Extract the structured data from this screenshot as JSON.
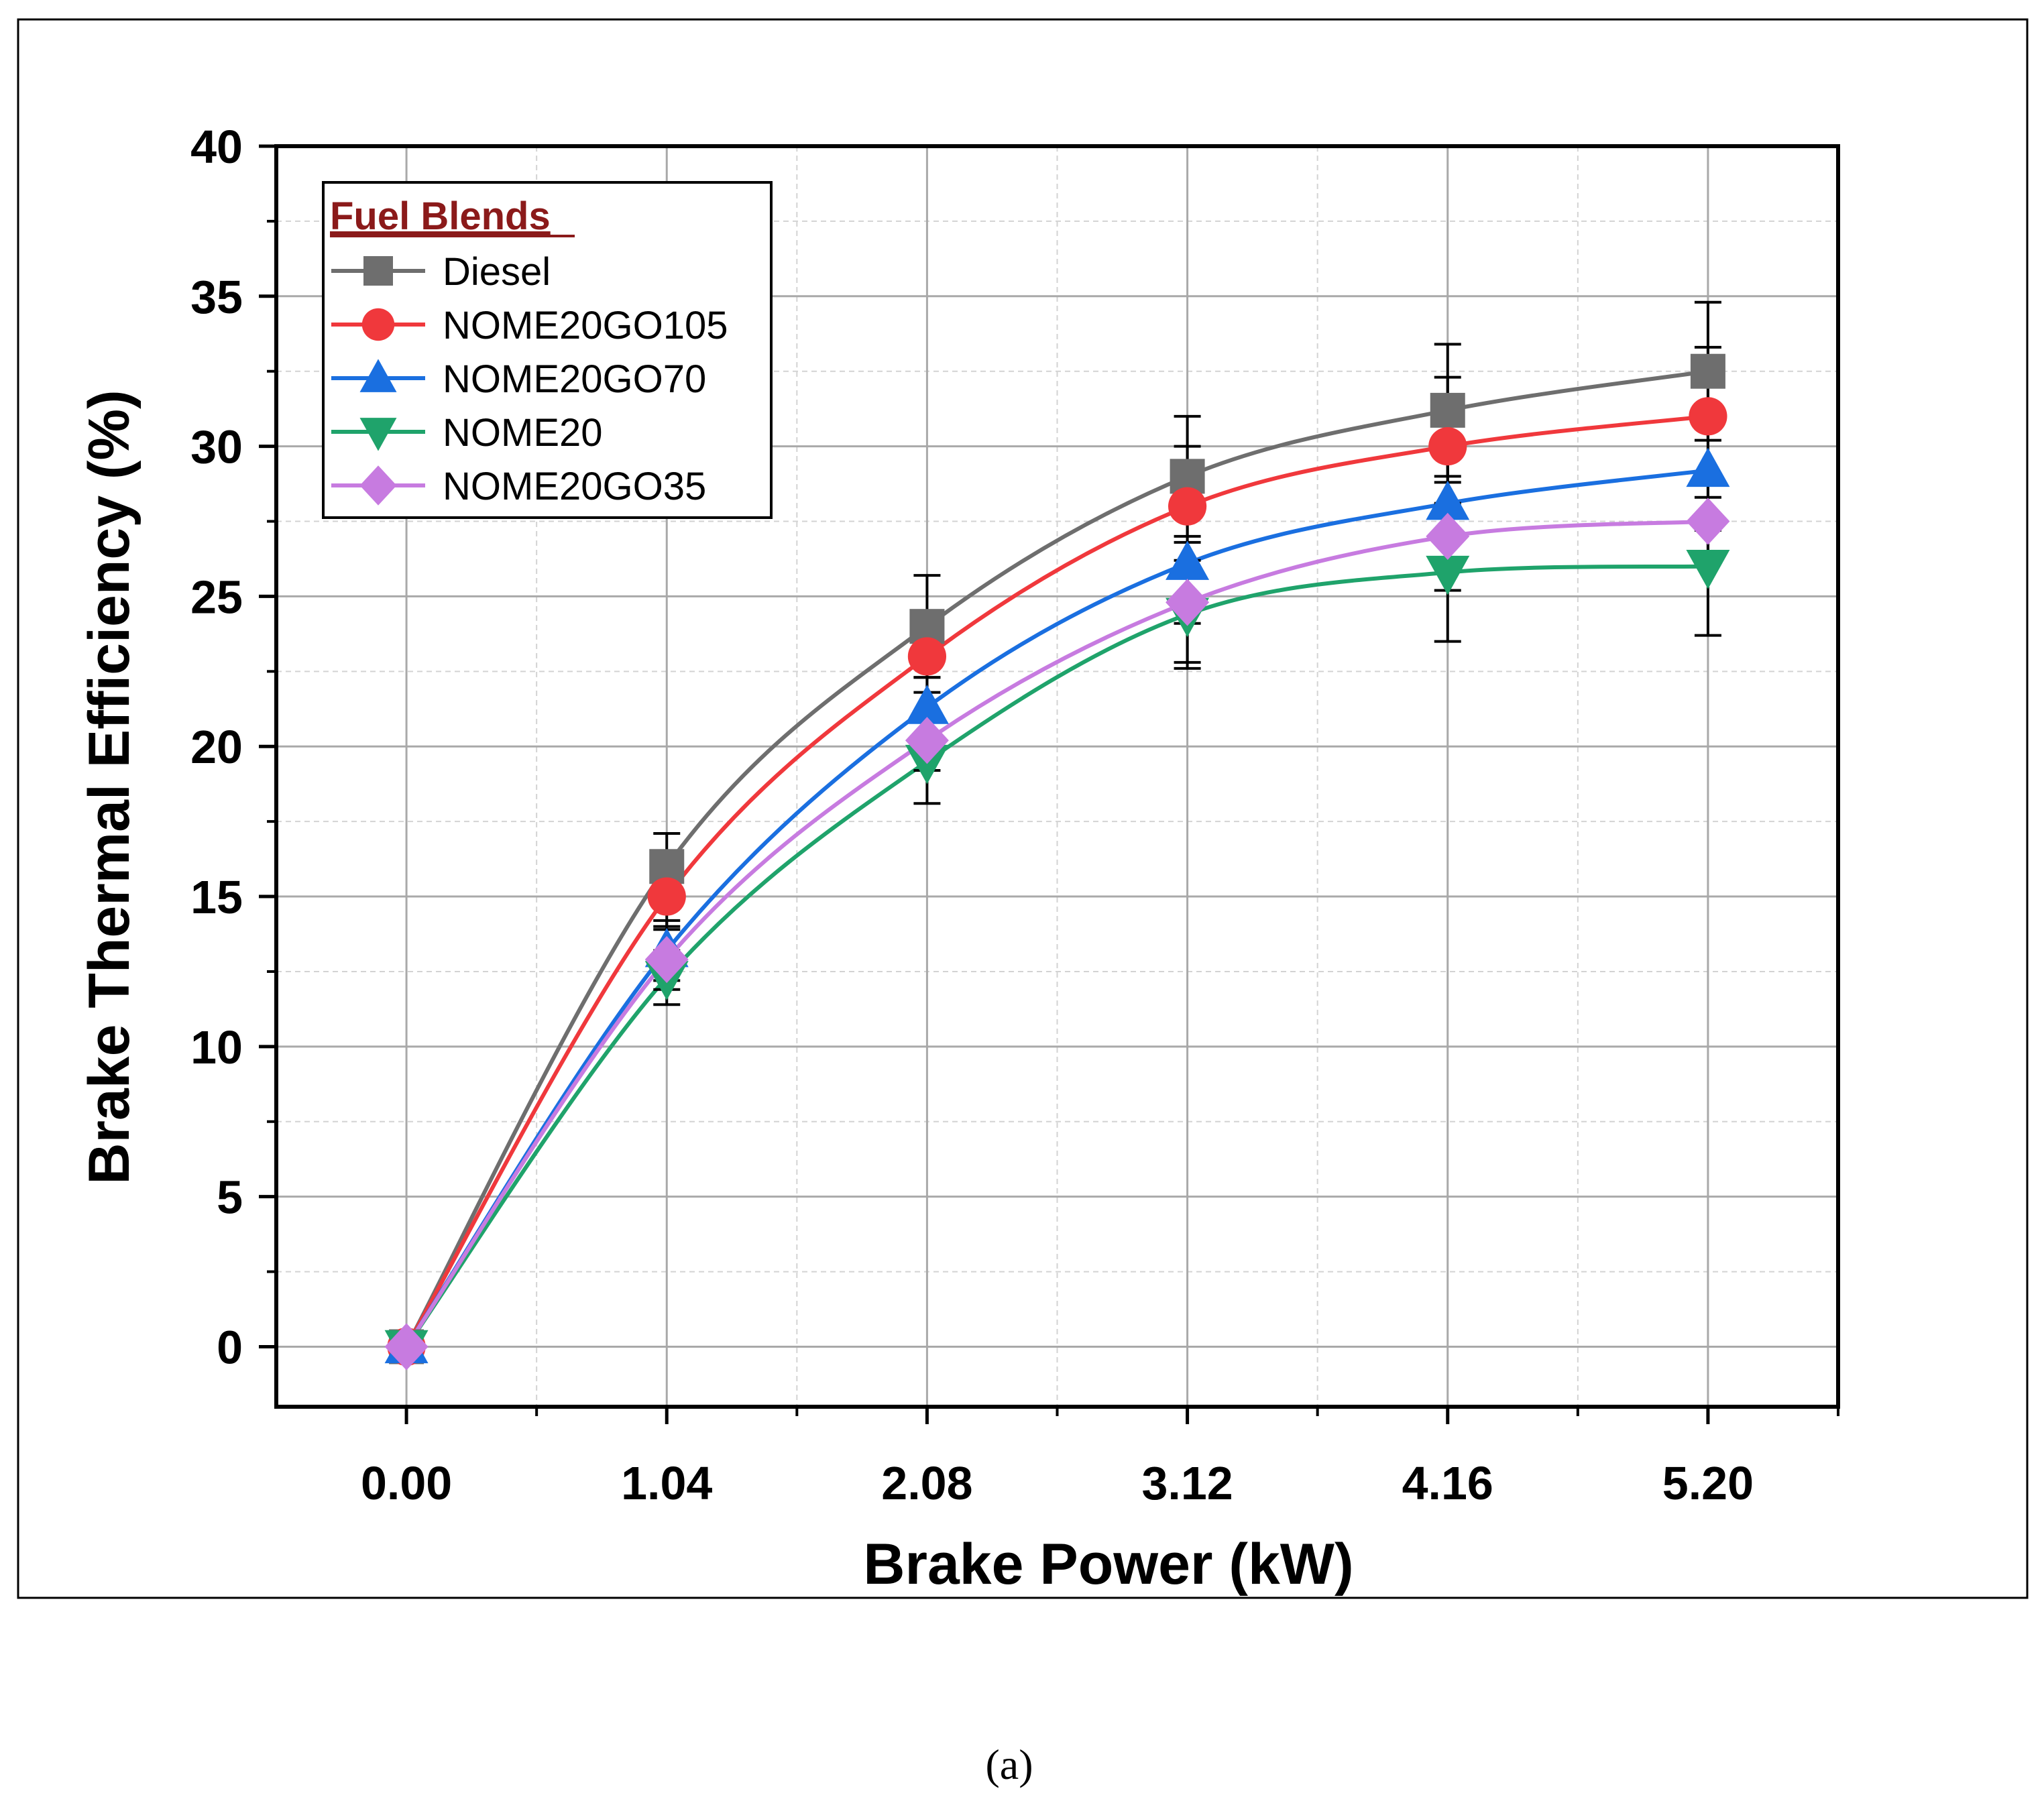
{
  "chart_data": {
    "type": "line",
    "title": "",
    "xlabel": "Brake Power (kW)",
    "ylabel": "Brake Thermal Efficiency (%)",
    "x": [
      0.0,
      1.04,
      2.08,
      3.12,
      4.16,
      5.2
    ],
    "x_tick_labels": [
      "0.00",
      "1.04",
      "2.08",
      "3.12",
      "4.16",
      "5.20"
    ],
    "xlim": [
      -0.52,
      5.72
    ],
    "ylim": [
      -2,
      40
    ],
    "y_ticks": [
      0,
      5,
      10,
      15,
      20,
      25,
      30,
      35,
      40
    ],
    "y_tick_labels": [
      "0",
      "5",
      "10",
      "15",
      "20",
      "25",
      "30",
      "35",
      "40"
    ],
    "grid": true,
    "legend_title": "Fuel Blends",
    "legend_position": "top-left",
    "caption": "(a)",
    "series": [
      {
        "name": "Diesel",
        "color": "#6e6e6e",
        "marker": "square",
        "values": [
          0,
          16.0,
          24.0,
          29.0,
          31.2,
          32.5
        ],
        "errors": [
          0,
          1.1,
          1.7,
          2.0,
          2.2,
          2.3
        ]
      },
      {
        "name": "NOME20GO105",
        "color": "#f0383c",
        "marker": "circle",
        "values": [
          0,
          15.0,
          23.0,
          28.0,
          30.0,
          31.0
        ],
        "errors": [
          0,
          1.0,
          1.2,
          2.0,
          2.3,
          2.3
        ]
      },
      {
        "name": "NOME20GO70",
        "color": "#1a6fe0",
        "marker": "triangle-up",
        "values": [
          0,
          13.2,
          21.3,
          26.1,
          28.1,
          29.2
        ],
        "errors": [
          0,
          1.0,
          1.0,
          2.0,
          2.2,
          2.0
        ]
      },
      {
        "name": "NOME20",
        "color": "#1fa36b",
        "marker": "triangle-down",
        "values": [
          0,
          12.3,
          19.5,
          24.4,
          25.8,
          26.0
        ],
        "errors": [
          0,
          0.9,
          1.4,
          1.8,
          2.3,
          2.3
        ]
      },
      {
        "name": "NOME20GO35",
        "color": "#c77be0",
        "marker": "diamond",
        "values": [
          0,
          12.9,
          20.2,
          24.8,
          27.0,
          27.5
        ],
        "errors": [
          0,
          1.0,
          1.0,
          2.0,
          1.8,
          1.3
        ]
      }
    ]
  }
}
